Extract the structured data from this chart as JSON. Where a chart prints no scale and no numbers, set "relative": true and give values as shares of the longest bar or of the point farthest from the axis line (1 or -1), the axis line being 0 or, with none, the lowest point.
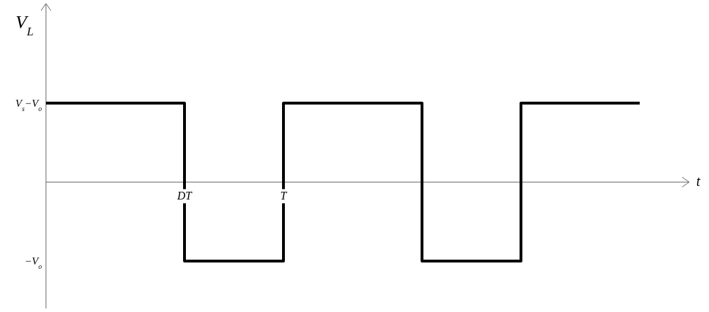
{
  "chart_data": {
    "type": "step",
    "xlabel": "t",
    "ylabel": "V$_{L}$",
    "relative": true,
    "categories": [
      null,
      null,
      null,
      null,
      null,
      null,
      null,
      "DT",
      null,
      null,
      null,
      null,
      "T",
      null,
      null,
      null,
      null,
      null,
      null,
      null,
      null,
      null,
      null,
      null,
      null,
      null,
      null,
      null,
      null,
      null,
      null
    ],
    "series": [
      {
        "color": "#000000",
        "values": [
          1,
          1,
          1,
          1,
          1,
          1,
          1,
          -1,
          -1,
          -1,
          -1,
          -1,
          1,
          1,
          1,
          1,
          1,
          1,
          1,
          -1,
          -1,
          -1,
          -1,
          -1,
          1,
          1,
          1,
          1,
          1,
          1,
          1
        ]
      }
    ],
    "annotations": [
      "V$_{s}$−V$_{o}$",
      "−V$_{o}$"
    ]
  }
}
